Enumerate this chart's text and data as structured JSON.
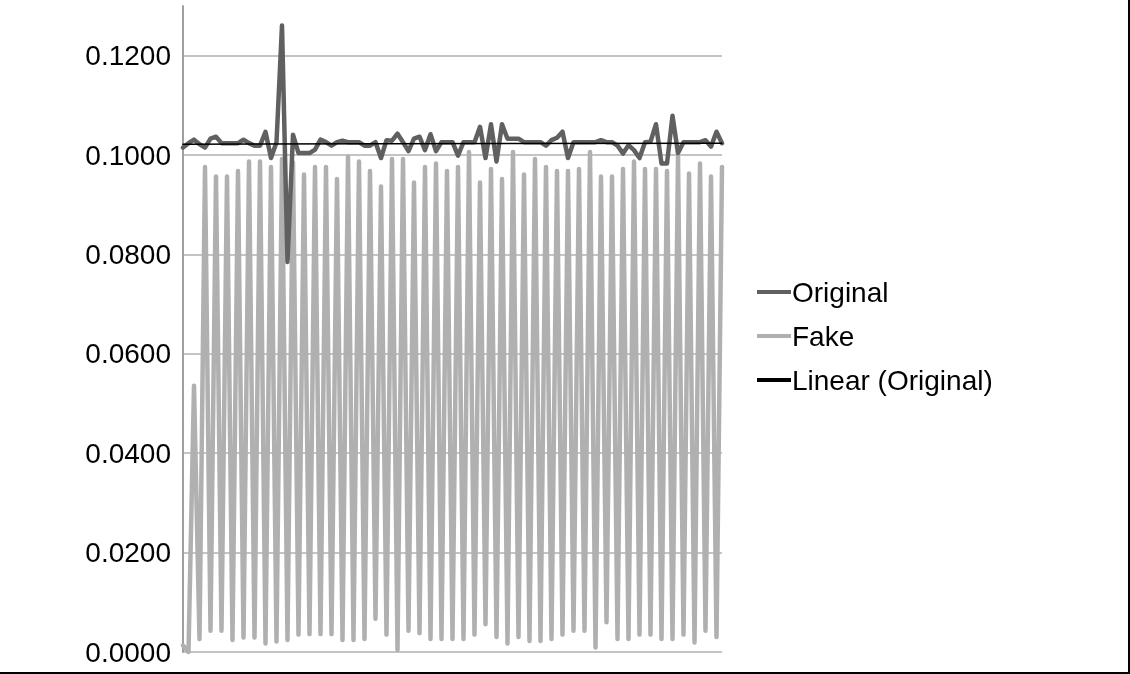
{
  "chart_data": {
    "type": "line",
    "categories": [
      null,
      null,
      null,
      null,
      null,
      null,
      null,
      null,
      null,
      null,
      null,
      null,
      null,
      null,
      null,
      null,
      null,
      null,
      null,
      null,
      null,
      null,
      null,
      null,
      null,
      null,
      null,
      null,
      null,
      null,
      null,
      null,
      null,
      null,
      null,
      null,
      null,
      null,
      null,
      null,
      null,
      null,
      null,
      null,
      null,
      null,
      null,
      null,
      null,
      null,
      null,
      null,
      null,
      null,
      null,
      null,
      null,
      null,
      null,
      null,
      null,
      null,
      null,
      null,
      null,
      null,
      null,
      null,
      null,
      null,
      null,
      null,
      null,
      null,
      null,
      null,
      null,
      null,
      null,
      null,
      null,
      null,
      null,
      null,
      null,
      null,
      null,
      null,
      null,
      null,
      null,
      null,
      null,
      null,
      null,
      null,
      null,
      null,
      null
    ],
    "series": [
      {
        "name": "Original",
        "color": "#606060",
        "values": [
          0.1015,
          0.1024,
          0.1031,
          0.1022,
          0.1015,
          0.1033,
          0.1037,
          0.1024,
          0.1024,
          0.1024,
          0.1024,
          0.1031,
          0.1024,
          0.1019,
          0.1019,
          0.1047,
          0.0994,
          0.1026,
          0.1261,
          0.0785,
          0.1041,
          0.1004,
          0.1004,
          0.1004,
          0.1011,
          0.1031,
          0.1026,
          0.1019,
          0.1026,
          0.1029,
          0.1026,
          0.1026,
          0.1026,
          0.1019,
          0.1019,
          0.1026,
          0.0994,
          0.103,
          0.1029,
          0.1043,
          0.1026,
          0.1008,
          0.1033,
          0.1037,
          0.101,
          0.1042,
          0.1008,
          0.1026,
          0.1026,
          0.1026,
          0.0999,
          0.1026,
          0.1026,
          0.1026,
          0.1057,
          0.0994,
          0.1062,
          0.0987,
          0.1062,
          0.1033,
          0.1033,
          0.1033,
          0.1026,
          0.1026,
          0.1026,
          0.1026,
          0.1019,
          0.103,
          0.1035,
          0.1047,
          0.0994,
          0.1026,
          0.1026,
          0.1026,
          0.1026,
          0.1026,
          0.103,
          0.1026,
          0.1026,
          0.1019,
          0.1003,
          0.102,
          0.101,
          0.0994,
          0.1026,
          0.1027,
          0.1062,
          0.0983,
          0.0983,
          0.1079,
          0.1004,
          0.1026,
          0.1026,
          0.1026,
          0.1026,
          0.103,
          0.1017,
          0.1047,
          0.1024
        ]
      },
      {
        "name": "Fake",
        "color": "#b0b0b0",
        "values": [
          0.0013,
          0.0,
          0.0536,
          0.0026,
          0.0976,
          0.0043,
          0.0957,
          0.0043,
          0.0957,
          0.0024,
          0.0968,
          0.0029,
          0.0987,
          0.0029,
          0.0987,
          0.0017,
          0.0976,
          0.0021,
          0.0992,
          0.0024,
          0.0985,
          0.0035,
          0.0961,
          0.0036,
          0.0976,
          0.0036,
          0.0976,
          0.0036,
          0.0952,
          0.0024,
          0.0997,
          0.0024,
          0.0987,
          0.0026,
          0.0968,
          0.0067,
          0.0937,
          0.0035,
          0.0992,
          0.0004,
          0.0992,
          0.0043,
          0.0945,
          0.0038,
          0.0976,
          0.0026,
          0.0983,
          0.0026,
          0.0968,
          0.0026,
          0.0976,
          0.0026,
          0.1006,
          0.0035,
          0.0945,
          0.0056,
          0.0972,
          0.003,
          0.0952,
          0.0017,
          0.1006,
          0.003,
          0.0961,
          0.0022,
          0.0992,
          0.0022,
          0.0976,
          0.0026,
          0.0968,
          0.0035,
          0.0968,
          0.0043,
          0.0972,
          0.0043,
          0.1006,
          0.0009,
          0.0957,
          0.006,
          0.0957,
          0.0026,
          0.0972,
          0.0026,
          0.0987,
          0.0035,
          0.0972,
          0.0035,
          0.0972,
          0.0026,
          0.0968,
          0.0026,
          0.0997,
          0.0035,
          0.0963,
          0.0019,
          0.0983,
          0.0043,
          0.0957,
          0.003,
          0.0976
        ]
      },
      {
        "name": "Linear (Original)",
        "color": "#000000",
        "values": [
          0.1022,
          null,
          null,
          null,
          null,
          null,
          null,
          null,
          null,
          null,
          null,
          null,
          null,
          null,
          null,
          null,
          null,
          null,
          null,
          null,
          null,
          null,
          null,
          null,
          null,
          null,
          null,
          null,
          null,
          null,
          null,
          null,
          null,
          null,
          null,
          null,
          null,
          null,
          null,
          null,
          null,
          null,
          null,
          null,
          null,
          null,
          null,
          null,
          null,
          null,
          null,
          null,
          null,
          null,
          null,
          null,
          null,
          null,
          null,
          null,
          null,
          null,
          null,
          null,
          null,
          null,
          null,
          null,
          null,
          null,
          null,
          null,
          null,
          null,
          null,
          null,
          null,
          null,
          null,
          null,
          null,
          null,
          null,
          null,
          null,
          null,
          null,
          null,
          null,
          null,
          null,
          null,
          null,
          null,
          null,
          null,
          null,
          null,
          0.1024
        ]
      }
    ],
    "ylim": [
      0,
      0.13
    ],
    "yticks": [
      {
        "value": 0,
        "label": "0.0000"
      },
      {
        "value": 0.02,
        "label": "0.0200"
      },
      {
        "value": 0.04,
        "label": "0.0400"
      },
      {
        "value": 0.06,
        "label": "0.0600"
      },
      {
        "value": 0.08,
        "label": "0.0800"
      },
      {
        "value": 0.1,
        "label": "0.1000"
      },
      {
        "value": 0.12,
        "label": "0.1200"
      }
    ],
    "grid": "y",
    "legend": "right",
    "tick_labels": "y"
  }
}
